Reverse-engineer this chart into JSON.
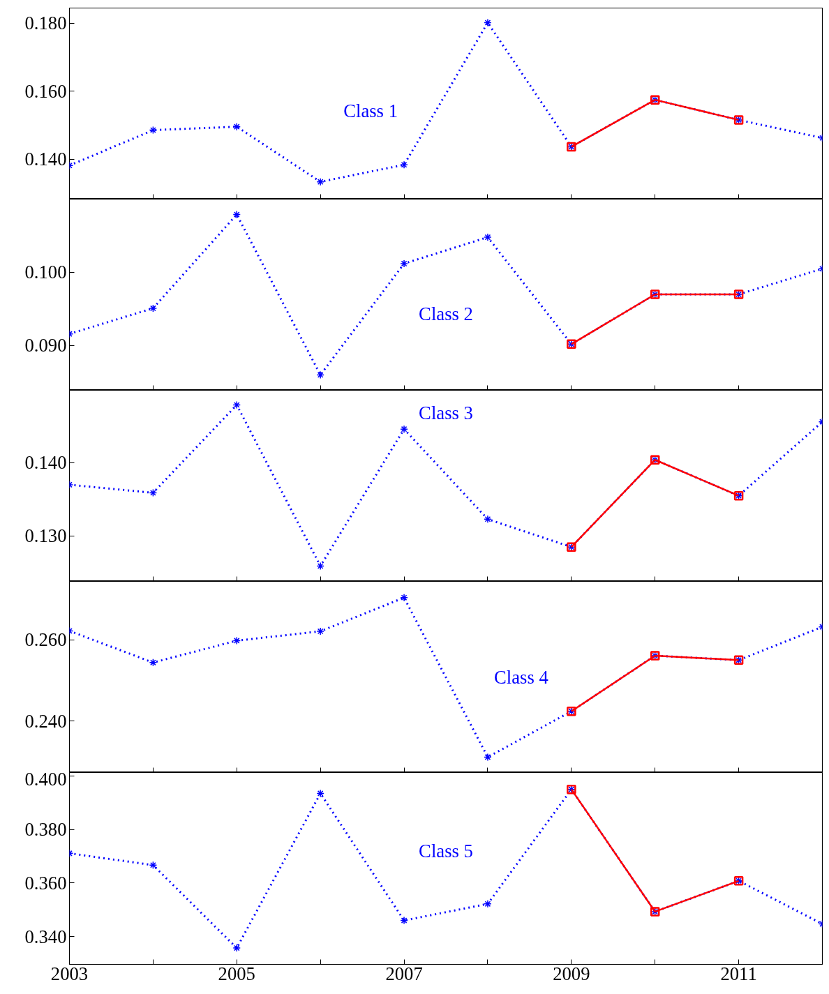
{
  "chart_data": [
    {
      "type": "line",
      "x": [
        2003,
        2004,
        2005,
        2006,
        2007,
        2008,
        2009,
        2010,
        2011,
        2012
      ],
      "xlim": [
        2003,
        2012
      ],
      "xticks": [
        2003,
        {
          "value": 2004,
          "label": null
        },
        2005,
        {
          "value": 2006,
          "label": null
        },
        2007,
        {
          "value": 2008,
          "label": null
        },
        2009,
        {
          "value": 2010,
          "label": null
        },
        2011,
        {
          "value": 2012,
          "label": null
        }
      ],
      "ylim": [
        0.1283,
        0.1845
      ],
      "yticks": [
        {
          "value": 0.14,
          "label": "0.140"
        },
        {
          "value": 0.16,
          "label": "0.160"
        },
        {
          "value": 0.18,
          "label": "0.180"
        }
      ],
      "tick_labels": "y",
      "grid": false,
      "series": [
        {
          "color": "#0000ff",
          "line_style": "dotted",
          "marker": "cross",
          "values": [
            0.1382,
            0.1486,
            0.1496,
            0.1334,
            0.1384,
            0.1802,
            0.1437,
            0.1575,
            0.1516,
            0.1463
          ]
        },
        {
          "color": "#ff0000",
          "line_style": "solid",
          "marker": "square",
          "x": [
            2009,
            2010,
            2011
          ],
          "values": [
            0.1437,
            0.1575,
            0.1516
          ]
        }
      ],
      "annotations": [
        "Class 1"
      ]
    },
    {
      "type": "line",
      "x": [
        2003,
        2004,
        2005,
        2006,
        2007,
        2008,
        2009,
        2010,
        2011,
        2012
      ],
      "xlim": [
        2003,
        2012
      ],
      "xticks": [
        2003,
        {
          "value": 2004,
          "label": null
        },
        2005,
        {
          "value": 2006,
          "label": null
        },
        2007,
        {
          "value": 2008,
          "label": null
        },
        2009,
        {
          "value": 2010,
          "label": null
        },
        2011,
        {
          "value": 2012,
          "label": null
        }
      ],
      "ylim": [
        0.0839,
        0.11
      ],
      "yticks": [
        {
          "value": 0.09,
          "label": "0.090"
        },
        {
          "value": 0.1,
          "label": "0.100"
        }
      ],
      "tick_labels": "y",
      "grid": false,
      "series": [
        {
          "color": "#0000ff",
          "line_style": "dotted",
          "marker": "cross",
          "values": [
            0.0916,
            0.0951,
            0.1079,
            0.086,
            0.1012,
            0.1048,
            0.0902,
            0.097,
            0.097,
            0.1005
          ]
        },
        {
          "color": "#ff0000",
          "line_style": "solid",
          "marker": "square",
          "x": [
            2009,
            2010,
            2011
          ],
          "values": [
            0.0902,
            0.097,
            0.097
          ]
        }
      ],
      "annotations": [
        "Class 2"
      ]
    },
    {
      "type": "line",
      "x": [
        2003,
        2004,
        2005,
        2006,
        2007,
        2008,
        2009,
        2010,
        2011,
        2012
      ],
      "xlim": [
        2003,
        2012
      ],
      "xticks": [
        2003,
        {
          "value": 2004,
          "label": null
        },
        2005,
        {
          "value": 2006,
          "label": null
        },
        2007,
        {
          "value": 2008,
          "label": null
        },
        2009,
        {
          "value": 2010,
          "label": null
        },
        2011,
        {
          "value": 2012,
          "label": null
        }
      ],
      "ylim": [
        0.1238,
        0.1499
      ],
      "yticks": [
        {
          "value": 0.13,
          "label": "0.130"
        },
        {
          "value": 0.14,
          "label": "0.140"
        }
      ],
      "tick_labels": "y",
      "grid": false,
      "series": [
        {
          "color": "#0000ff",
          "line_style": "dotted",
          "marker": "cross",
          "values": [
            0.137,
            0.1359,
            0.1479,
            0.1259,
            0.1446,
            0.1323,
            0.1285,
            0.1404,
            0.1355,
            0.1456
          ]
        },
        {
          "color": "#ff0000",
          "line_style": "solid",
          "marker": "square",
          "x": [
            2009,
            2010,
            2011
          ],
          "values": [
            0.1285,
            0.1404,
            0.1355
          ]
        }
      ],
      "annotations": [
        "Class 3"
      ]
    },
    {
      "type": "line",
      "x": [
        2003,
        2004,
        2005,
        2006,
        2007,
        2008,
        2009,
        2010,
        2011,
        2012
      ],
      "xlim": [
        2003,
        2012
      ],
      "xticks": [
        2003,
        {
          "value": 2004,
          "label": null
        },
        2005,
        {
          "value": 2006,
          "label": null
        },
        2007,
        {
          "value": 2008,
          "label": null
        },
        2009,
        {
          "value": 2010,
          "label": null
        },
        2011,
        {
          "value": 2012,
          "label": null
        }
      ],
      "ylim": [
        0.2273,
        0.2744
      ],
      "yticks": [
        {
          "value": 0.24,
          "label": "0.240"
        },
        {
          "value": 0.26,
          "label": "0.260"
        }
      ],
      "tick_labels": "y",
      "grid": false,
      "series": [
        {
          "color": "#0000ff",
          "line_style": "dotted",
          "marker": "cross",
          "values": [
            0.2622,
            0.2544,
            0.2598,
            0.2621,
            0.2704,
            0.2311,
            0.2424,
            0.2561,
            0.255,
            0.2632
          ]
        },
        {
          "color": "#ff0000",
          "line_style": "solid",
          "marker": "square",
          "x": [
            2009,
            2010,
            2011
          ],
          "values": [
            0.2424,
            0.2561,
            0.255
          ]
        }
      ],
      "annotations": [
        "Class 4"
      ]
    },
    {
      "type": "line",
      "x": [
        2003,
        2004,
        2005,
        2006,
        2007,
        2008,
        2009,
        2010,
        2011,
        2012
      ],
      "xlim": [
        2003,
        2012
      ],
      "xticks": [
        2003,
        {
          "value": 2004,
          "label": null
        },
        2005,
        {
          "value": 2006,
          "label": null
        },
        2007,
        {
          "value": 2008,
          "label": null
        },
        2009,
        {
          "value": 2010,
          "label": null
        },
        2011,
        {
          "value": 2012,
          "label": null
        }
      ],
      "ylim": [
        0.3296,
        0.4013
      ],
      "yticks": [
        {
          "value": 0.34,
          "label": "0.340"
        },
        {
          "value": 0.36,
          "label": "0.360"
        },
        {
          "value": 0.38,
          "label": "0.380"
        },
        {
          "value": 0.4,
          "label": "0.400"
        }
      ],
      "grid": false,
      "series": [
        {
          "color": "#0000ff",
          "line_style": "dotted",
          "marker": "cross",
          "values": [
            0.3711,
            0.3667,
            0.3357,
            0.3935,
            0.346,
            0.3522,
            0.395,
            0.3493,
            0.3608,
            0.3447
          ]
        },
        {
          "color": "#ff0000",
          "line_style": "solid",
          "marker": "square",
          "x": [
            2009,
            2010,
            2011
          ],
          "values": [
            0.395,
            0.3493,
            0.3608
          ]
        }
      ],
      "annotations": [
        "Class 5"
      ]
    }
  ]
}
